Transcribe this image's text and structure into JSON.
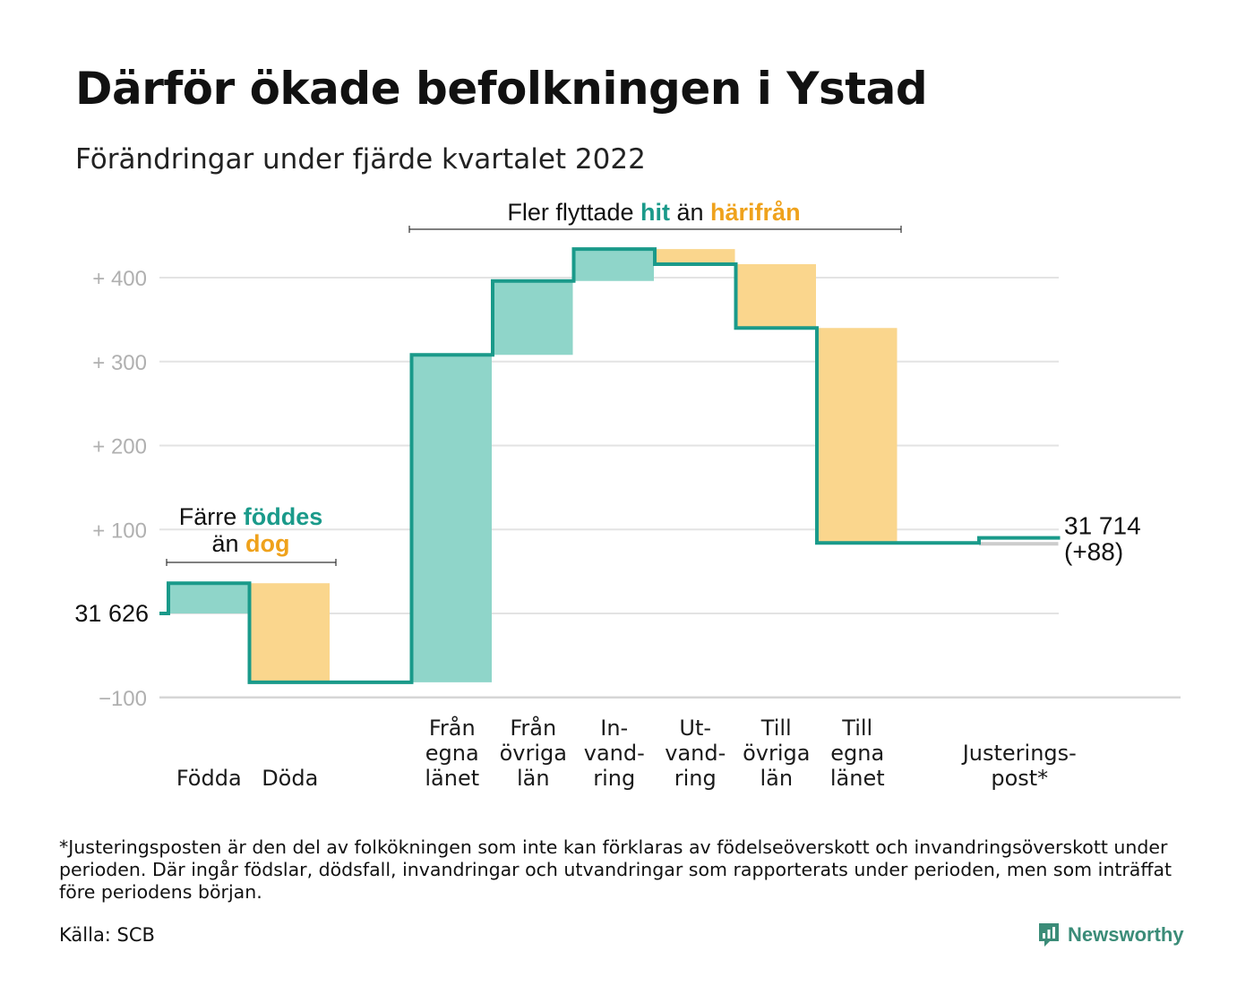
{
  "title": "Därför ökade befolkningen i Ystad",
  "subtitle": "Förändringar under fjärde kvartalet 2022",
  "chart_data": {
    "type": "waterfall",
    "title": "Därför ökade befolkningen i Ystad",
    "subtitle": "Förändringar under fjärde kvartalet 2022",
    "base_value": 31626,
    "base_label": "31 626",
    "y_range": [
      -110,
      430
    ],
    "y_ticks": [
      {
        "value": -100,
        "label": "−100"
      },
      {
        "value": 100,
        "label": "+ 100"
      },
      {
        "value": 200,
        "label": "+ 200"
      },
      {
        "value": 300,
        "label": "+ 300"
      },
      {
        "value": 400,
        "label": "+ 400"
      }
    ],
    "grid": true,
    "steps": [
      {
        "label": [
          "Födda"
        ],
        "value": 36,
        "kind": "in"
      },
      {
        "label": [
          "Döda"
        ],
        "value": -118,
        "kind": "out"
      },
      {
        "label": [],
        "value": 0,
        "kind": "spacer"
      },
      {
        "label": [
          "Från",
          "egna",
          "länet"
        ],
        "value": 390,
        "kind": "in"
      },
      {
        "label": [
          "Från",
          "övriga",
          "län"
        ],
        "value": 88,
        "kind": "in"
      },
      {
        "label": [
          "In-",
          "vand-",
          "ring"
        ],
        "value": 38,
        "kind": "in"
      },
      {
        "label": [
          "Ut-",
          "vand-",
          "ring"
        ],
        "value": -18,
        "kind": "out"
      },
      {
        "label": [
          "Till",
          "övriga",
          "län"
        ],
        "value": -76,
        "kind": "out"
      },
      {
        "label": [
          "Till",
          "egna",
          "länet"
        ],
        "value": -256,
        "kind": "out"
      },
      {
        "label": [],
        "value": 0,
        "kind": "spacer"
      },
      {
        "label": [
          "Justerings-",
          "post*"
        ],
        "value": 6,
        "kind": "adjustment"
      }
    ],
    "end_value": "31 714",
    "end_change": "(+88)",
    "annotations": [
      {
        "parts": [
          {
            "text": "Färre "
          },
          {
            "text": "föddes",
            "style": "teal"
          }
        ],
        "line2": [
          {
            "text": "än "
          },
          {
            "text": "dog",
            "style": "orange"
          }
        ]
      },
      {
        "parts": [
          {
            "text": "Fler flyttade "
          },
          {
            "text": "hit",
            "style": "teal"
          },
          {
            "text": " än "
          },
          {
            "text": "härifrån",
            "style": "orange"
          }
        ]
      }
    ],
    "colors": {
      "in": "#8fd5c9",
      "out": "#fad68d",
      "line": "#1a9a8a",
      "adjustment": "#cccccc",
      "grid": "#e3e3e3"
    }
  },
  "footnote": "*Justeringsposten är den del av folkökningen som inte kan förklaras av födelseöverskott och invandringsöverskott under perioden. Där ingår födslar, dödsfall, invandringar och utvandringar som rapporterats under perioden, men som inträffat före periodens början.",
  "source": "Källa: SCB",
  "brand": "Newsworthy"
}
